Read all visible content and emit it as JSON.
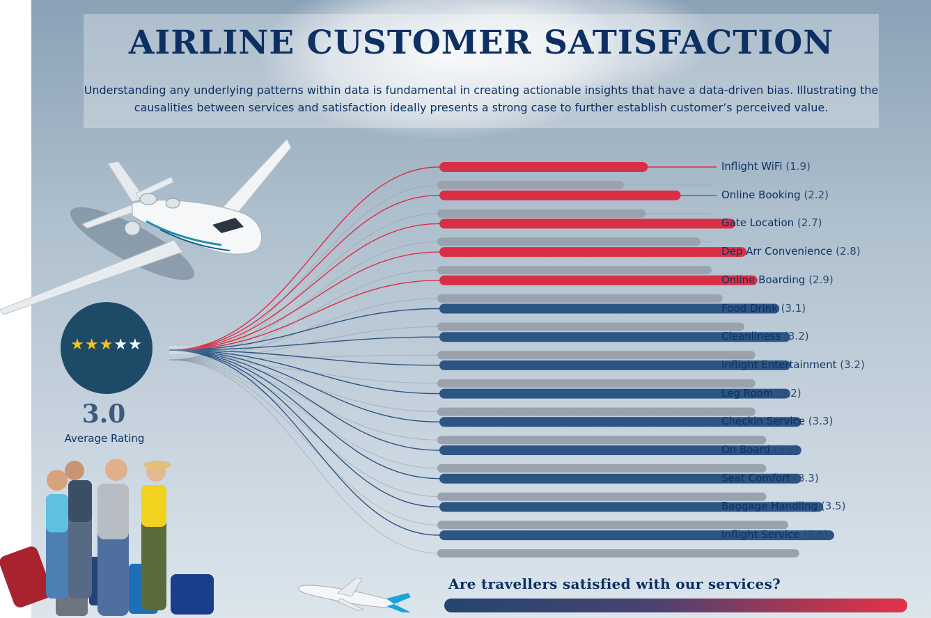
{
  "header": {
    "title": "AIRLINE CUSTOMER SATISFACTION",
    "subtitle": "Understanding any underlying patterns within data is fundamental in creating actionable insights that have a data-driven bias. Illustrating the causalities between services and satisfaction ideally presents a strong case to further establish customer’s perceived value."
  },
  "rating": {
    "value": "3.0",
    "label": "Average Rating",
    "stars_filled": 3,
    "stars_total": 5
  },
  "footer": {
    "question": "Are travellers satisfied with our services?"
  },
  "colors": {
    "below_average": "#d92f45",
    "above_average": "#2c5584",
    "comparison_bar": "#9aa3ad",
    "text": "#0d3063"
  },
  "chart_data": {
    "type": "bar",
    "orientation": "horizontal",
    "categories": [
      "Inflight WiFi",
      "Online Booking",
      "Gate Location",
      "Dep Arr Convenience",
      "Online Boarding",
      "Food Drink",
      "Cleanliness",
      "Inflight Entertainment",
      "Leg Room",
      "Checkin Service",
      "On Board",
      "Seat Comfort",
      "Baggage Handling",
      "Inflight Service"
    ],
    "values": [
      1.9,
      2.2,
      2.7,
      2.8,
      2.9,
      3.1,
      3.2,
      3.2,
      3.2,
      3.3,
      3.3,
      3.3,
      3.5,
      3.6
    ],
    "value_labels": [
      "(1.9)",
      "(2.2)",
      "(2.7)",
      "(2.8)",
      "(2.9)",
      "(3.1)",
      "(3.2)",
      "(3.2)",
      "(3.2)",
      "(3.3)",
      "(3.3)",
      "(3.3)",
      "(3.5)",
      "(3.6)"
    ],
    "comparison_values": [
      1.7,
      1.9,
      2.4,
      2.5,
      2.6,
      2.8,
      2.9,
      2.9,
      2.9,
      3.0,
      3.0,
      3.0,
      3.2,
      3.3
    ],
    "red_threshold": 3.0,
    "xlim": [
      0,
      5
    ]
  }
}
